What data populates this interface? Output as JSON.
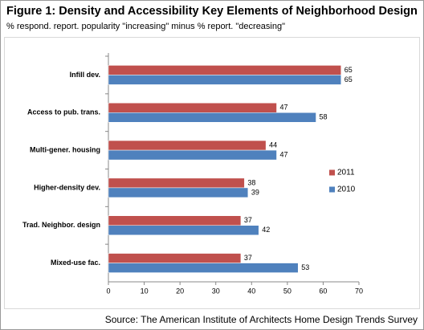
{
  "chart_data": {
    "type": "bar",
    "orientation": "horizontal",
    "title": "Figure 1: Density and Accessibility Key Elements of Neighborhood Design",
    "subtitle": "% respond. report. popularity \"increasing\" minus % report. \"decreasing\"",
    "source": "Source: The American Institute of Architects Home Design Trends Survey",
    "categories": [
      "Infill dev.",
      "Access to pub. trans.",
      "Multi-gener. housing",
      "Higher-density dev.",
      "Trad. Neighbor. design",
      "Mixed-use fac."
    ],
    "series": [
      {
        "name": "2011",
        "color": "#c0504d",
        "values": [
          65,
          47,
          44,
          38,
          37,
          37
        ]
      },
      {
        "name": "2010",
        "color": "#4f81bd",
        "values": [
          65,
          58,
          47,
          39,
          42,
          53
        ]
      }
    ],
    "xlim": [
      0,
      70
    ],
    "xticks": [
      0,
      10,
      20,
      30,
      40,
      50,
      60,
      70
    ],
    "grid": false
  }
}
